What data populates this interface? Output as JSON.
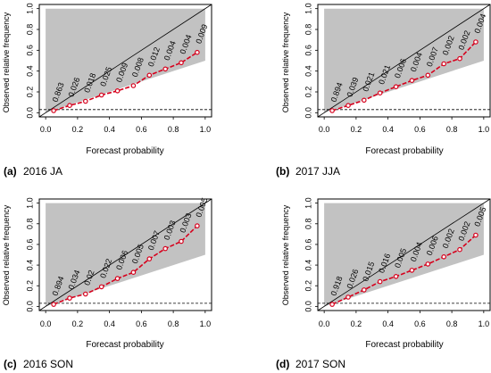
{
  "chart_data": [
    {
      "type": "line",
      "caption_letter": "(a)",
      "caption_text": "2016 JA",
      "xlabel": "Forecast probability",
      "ylabel": "Observed relative frequency",
      "xlim": [
        0,
        1
      ],
      "ylim": [
        0,
        1
      ],
      "xticks": [
        "0.0",
        "0.2",
        "0.4",
        "0.6",
        "0.8",
        "1.0"
      ],
      "yticks": [
        "0.0",
        "0.2",
        "0.4",
        "0.6",
        "0.8",
        "1.0"
      ],
      "x": [
        0.05,
        0.15,
        0.25,
        0.35,
        0.45,
        0.55,
        0.65,
        0.75,
        0.85,
        0.95
      ],
      "y": [
        0.02,
        0.07,
        0.11,
        0.17,
        0.21,
        0.26,
        0.36,
        0.42,
        0.48,
        0.58
      ],
      "sample_labels": [
        "0.863",
        "0.026",
        "0.018",
        "0.025",
        "0.009",
        "0.008",
        "0.012",
        "0.004",
        "0.004",
        "0.009"
      ]
    },
    {
      "type": "line",
      "caption_letter": "(b)",
      "caption_text": "2017 JJA",
      "xlabel": "Forecast probability",
      "ylabel": "Observed relative frequency",
      "xlim": [
        0,
        1
      ],
      "ylim": [
        0,
        1
      ],
      "xticks": [
        "0.0",
        "0.2",
        "0.4",
        "0.6",
        "0.8",
        "1.0"
      ],
      "yticks": [
        "0.0",
        "0.2",
        "0.4",
        "0.6",
        "0.8",
        "1.0"
      ],
      "x": [
        0.05,
        0.15,
        0.25,
        0.35,
        0.45,
        0.55,
        0.65,
        0.75,
        0.85,
        0.95
      ],
      "y": [
        0.02,
        0.07,
        0.12,
        0.19,
        0.25,
        0.31,
        0.36,
        0.47,
        0.52,
        0.68
      ],
      "sample_labels": [
        "0.894",
        "0.039",
        "0.021",
        "0.021",
        "0.006",
        "0.004",
        "0.007",
        "0.002",
        "0.002",
        "0.004"
      ]
    },
    {
      "type": "line",
      "caption_letter": "(c)",
      "caption_text": "2016 SON",
      "xlabel": "Forecast probability",
      "ylabel": "Observed relative frequency",
      "xlim": [
        0,
        1
      ],
      "ylim": [
        0,
        1
      ],
      "xticks": [
        "0.0",
        "0.2",
        "0.4",
        "0.6",
        "0.8",
        "1.0"
      ],
      "yticks": [
        "0.0",
        "0.2",
        "0.4",
        "0.6",
        "0.8",
        "1.0"
      ],
      "x": [
        0.05,
        0.15,
        0.25,
        0.35,
        0.45,
        0.55,
        0.65,
        0.75,
        0.85,
        0.95
      ],
      "y": [
        0.02,
        0.08,
        0.12,
        0.19,
        0.27,
        0.33,
        0.46,
        0.56,
        0.63,
        0.78
      ],
      "sample_labels": [
        "0.894",
        "0.034",
        "0.02",
        "0.022",
        "0.006",
        "0.005",
        "0.007",
        "0.003",
        "0.003",
        "0.005"
      ]
    },
    {
      "type": "line",
      "caption_letter": "(d)",
      "caption_text": "2017 SON",
      "xlabel": "Forecast probability",
      "ylabel": "Observed relative frequency",
      "xlim": [
        0,
        1
      ],
      "ylim": [
        0,
        1
      ],
      "xticks": [
        "0.0",
        "0.2",
        "0.4",
        "0.6",
        "0.8",
        "1.0"
      ],
      "yticks": [
        "0.0",
        "0.2",
        "0.4",
        "0.6",
        "0.8",
        "1.0"
      ],
      "x": [
        0.05,
        0.15,
        0.25,
        0.35,
        0.45,
        0.55,
        0.65,
        0.75,
        0.85,
        0.95
      ],
      "y": [
        0.02,
        0.09,
        0.16,
        0.24,
        0.29,
        0.35,
        0.41,
        0.48,
        0.55,
        0.69
      ],
      "sample_labels": [
        "0.918",
        "0.026",
        "0.015",
        "0.016",
        "0.005",
        "0.004",
        "0.006",
        "0.002",
        "0.002",
        "0.005"
      ]
    }
  ],
  "colors": {
    "shade": "#c2c2c2",
    "line": "#d6001c",
    "marker_edge": "#d6001c",
    "marker_fill": "#ffffff",
    "axis": "#000000",
    "text": "#000000"
  }
}
